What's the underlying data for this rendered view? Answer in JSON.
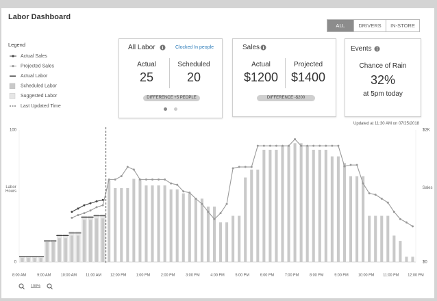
{
  "header": {
    "title": "Labor Dashboard",
    "tabs": [
      "ALL",
      "DRIVERS",
      "IN-STORE"
    ],
    "active_tab": 0
  },
  "legend_title": "Legend",
  "cards": {
    "labor": {
      "title": "All Labor",
      "link": "Clocked In people",
      "actual_label": "Actual",
      "actual": 25,
      "scheduled_label": "Scheduled",
      "scheduled": 20,
      "difference": "DIFFERENCE +5 PEOPLE"
    },
    "sales": {
      "title": "Sales",
      "actual_label": "Actual",
      "actual": "$1200",
      "projected_label": "Projected",
      "projected": "$1400",
      "difference": "DIFFERENCE -$200"
    },
    "events": {
      "title": "Events",
      "line1": "Chance of Rain",
      "value": "32%",
      "line2": "at 5pm today"
    }
  },
  "updated_text": "Updated at 11:30 AM on 07/25/2018",
  "zoom": "100%",
  "chart_data": {
    "type": "bar",
    "y_label": "Labor Hours",
    "y2_label": "Sales",
    "xlim": [
      8,
      24
    ],
    "xticks": [
      {
        "value": 8,
        "label": "8:00 AM"
      },
      {
        "value": 9,
        "label": "9:00 AM"
      },
      {
        "value": 10,
        "label": "10:00 AM"
      },
      {
        "value": 11,
        "label": "11:00 AM"
      },
      {
        "value": 12,
        "label": "12:00 PM"
      },
      {
        "value": 13,
        "label": "1:00 PM"
      },
      {
        "value": 14,
        "label": "2:00 PM"
      },
      {
        "value": 15,
        "label": "3:00 PM"
      },
      {
        "value": 16,
        "label": "4:00 PM"
      },
      {
        "value": 17,
        "label": "5:00 PM"
      },
      {
        "value": 18,
        "label": "6:00 PM"
      },
      {
        "value": 19,
        "label": "7:00 PM"
      },
      {
        "value": 20,
        "label": "8:00 PM"
      },
      {
        "value": 21,
        "label": "9:00 PM"
      },
      {
        "value": 22,
        "label": "10:00 PM"
      },
      {
        "value": 23,
        "label": "11:00 PM"
      },
      {
        "value": 24,
        "label": "12:00 PM"
      }
    ],
    "ylim": [
      0,
      100
    ],
    "yticks": [
      0,
      100
    ],
    "y2lim": [
      0,
      2000
    ],
    "y2ticks": [
      {
        "value": 0,
        "label": "$0"
      },
      {
        "value": 2000,
        "label": "$2K"
      }
    ],
    "grid": false,
    "last_updated": 11.5,
    "last_updated_label": "Last Updated Time",
    "x": [
      8,
      8.25,
      8.5,
      8.75,
      9,
      9.25,
      9.5,
      9.75,
      10,
      10.25,
      10.5,
      10.75,
      11,
      11.25,
      11.5,
      11.75,
      12,
      12.25,
      12.5,
      12.75,
      13,
      13.25,
      13.5,
      13.75,
      14,
      14.25,
      14.5,
      14.75,
      15,
      15.25,
      15.5,
      15.75,
      16,
      16.25,
      16.5,
      16.75,
      17,
      17.25,
      17.5,
      17.75,
      18,
      18.25,
      18.5,
      18.75,
      19,
      19.25,
      19.5,
      19.75,
      20,
      20.25,
      20.5,
      20.75,
      21,
      21.25,
      21.5,
      21.75,
      22,
      22.25,
      22.5,
      22.75,
      23,
      23.25,
      23.5,
      23.75
    ],
    "series": [
      {
        "name": "Actual Sales",
        "type": "line",
        "axis": "y2",
        "color": "#444444",
        "values": [
          null,
          null,
          null,
          null,
          null,
          null,
          null,
          null,
          760,
          810,
          860,
          890,
          920,
          940,
          null,
          null,
          null,
          null,
          null,
          null,
          null,
          null,
          null,
          null,
          null,
          null,
          null,
          null,
          null,
          null,
          null,
          null,
          null,
          null,
          null,
          null,
          null,
          null,
          null,
          null,
          null,
          null,
          null,
          null,
          null,
          null,
          null,
          null,
          null,
          null,
          null,
          null,
          null,
          null,
          null,
          null,
          null,
          null,
          null,
          null,
          null,
          null,
          null,
          null
        ]
      },
      {
        "name": "Projected Sales",
        "type": "line",
        "axis": "y2",
        "color": "#9a9a9a",
        "values": [
          null,
          null,
          null,
          null,
          null,
          null,
          null,
          null,
          670,
          710,
          740,
          780,
          830,
          860,
          1250,
          1250,
          1300,
          1440,
          1400,
          1250,
          1250,
          1250,
          1250,
          1250,
          1190,
          1170,
          1070,
          1050,
          960,
          880,
          760,
          650,
          740,
          880,
          1420,
          1440,
          1440,
          1440,
          1760,
          1760,
          1760,
          1760,
          1760,
          1760,
          1860,
          1760,
          1760,
          1760,
          1760,
          1760,
          1760,
          1760,
          1450,
          1470,
          1470,
          1190,
          1040,
          1020,
          960,
          900,
          760,
          650,
          600,
          540
        ]
      },
      {
        "name": "Actual Labor",
        "type": "step",
        "color": "#333333",
        "values": [
          4,
          4,
          4,
          4,
          16,
          16,
          20,
          20,
          22,
          22,
          34,
          34,
          35,
          35,
          null,
          null,
          null,
          null,
          null,
          null,
          null,
          null,
          null,
          null,
          null,
          null,
          null,
          null,
          null,
          null,
          null,
          null,
          null,
          null,
          null,
          null,
          null,
          null,
          null,
          null,
          null,
          null,
          null,
          null,
          null,
          null,
          null,
          null,
          null,
          null,
          null,
          null,
          null,
          null,
          null,
          null,
          null,
          null,
          null,
          null,
          null,
          null,
          null,
          null
        ]
      },
      {
        "name": "Scheduled Labor",
        "type": "bar",
        "color": "#c9c9c9",
        "values": [
          3,
          3,
          3,
          3,
          15,
          15,
          18,
          18,
          20,
          20,
          32,
          32,
          33,
          33,
          62,
          56,
          56,
          56,
          63,
          63,
          58,
          58,
          58,
          58,
          55,
          55,
          52,
          52,
          48,
          48,
          42,
          42,
          30,
          30,
          35,
          35,
          64,
          70,
          70,
          85,
          85,
          85,
          88,
          88,
          90,
          90,
          88,
          85,
          85,
          85,
          80,
          80,
          75,
          65,
          65,
          65,
          35,
          35,
          35,
          35,
          20,
          16,
          4,
          4
        ]
      },
      {
        "name": "Suggested Labor",
        "type": "bar",
        "color": "#e6e6e6",
        "values": [
          4,
          4,
          4,
          4,
          16,
          16,
          21,
          21,
          23,
          23,
          35,
          35,
          36,
          36,
          null,
          null,
          null,
          null,
          null,
          null,
          null,
          null,
          null,
          null,
          null,
          null,
          null,
          null,
          null,
          null,
          null,
          null,
          null,
          null,
          null,
          null,
          null,
          null,
          null,
          null,
          null,
          null,
          null,
          null,
          null,
          null,
          null,
          null,
          null,
          null,
          null,
          null,
          null,
          null,
          null,
          null,
          null,
          null,
          null,
          null,
          null,
          null,
          null,
          null
        ]
      }
    ]
  }
}
